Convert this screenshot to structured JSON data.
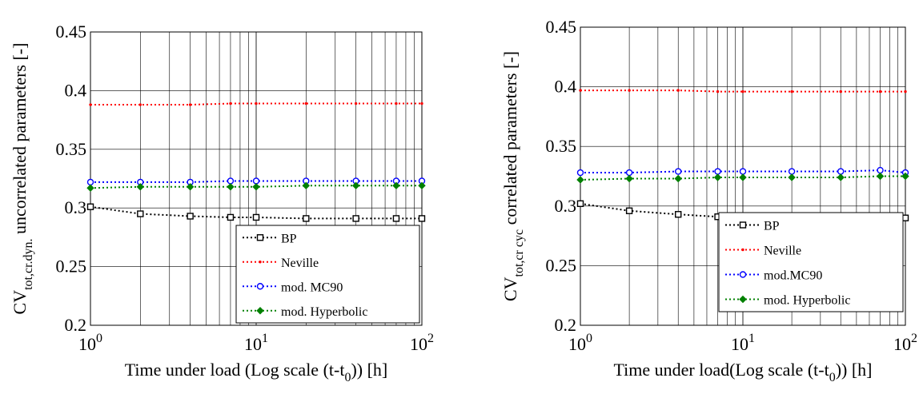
{
  "chart_data": [
    {
      "type": "line",
      "xscale": "log",
      "xlim": [
        1,
        100
      ],
      "ylim": [
        0.2,
        0.45
      ],
      "grid": true,
      "legend_position": "bottom-right",
      "xlabel": "Time under load (Log scale (t-t0)) [h]",
      "xlabel_parts": {
        "main": "Time under load (Log scale (t-t",
        "sub": "0",
        "tail": ")) [h]"
      },
      "ylabel": "CVtot,cr.dyn. uncorrelated parameters [-]",
      "ylabel_parts": {
        "cv": "CV",
        "sub": "tot,cr.dyn.",
        "rest": "uncorrelated parameters [-]"
      },
      "xticks": [
        {
          "base": "10",
          "exp": "0"
        },
        {
          "base": "10",
          "exp": "1"
        },
        {
          "base": "10",
          "exp": "2"
        }
      ],
      "yticks": [
        "0.2",
        "0.25",
        "0.3",
        "0.35",
        "0.4",
        "0.45"
      ],
      "x": [
        1,
        2,
        4,
        7,
        10,
        20,
        40,
        70,
        100
      ],
      "series": [
        {
          "name": "BP",
          "color": "#000000",
          "marker": "square",
          "values": [
            0.301,
            0.295,
            0.293,
            0.292,
            0.292,
            0.291,
            0.291,
            0.291,
            0.291
          ]
        },
        {
          "name": "Neville",
          "color": "#ff0000",
          "marker": "dot",
          "values": [
            0.388,
            0.388,
            0.388,
            0.389,
            0.389,
            0.389,
            0.389,
            0.389,
            0.389
          ]
        },
        {
          "name": "mod. MC90",
          "color": "#0000ff",
          "marker": "circle",
          "values": [
            0.322,
            0.322,
            0.322,
            0.323,
            0.323,
            0.323,
            0.323,
            0.323,
            0.323
          ]
        },
        {
          "name": "mod. Hyperbolic",
          "color": "#008000",
          "marker": "diamond",
          "values": [
            0.317,
            0.318,
            0.318,
            0.318,
            0.318,
            0.319,
            0.319,
            0.319,
            0.319
          ]
        }
      ]
    },
    {
      "type": "line",
      "xscale": "log",
      "xlim": [
        1,
        100
      ],
      "ylim": [
        0.2,
        0.45
      ],
      "grid": true,
      "legend_position": "bottom-right",
      "xlabel": "Time under load(Log scale (t-t0)) [h]",
      "xlabel_parts": {
        "main": "Time under load(Log scale (t-t",
        "sub": "0",
        "tail": ")) [h]"
      },
      "ylabel": "CVtot,cr cyc correlated parameters [-]",
      "ylabel_parts": {
        "cv": "CV",
        "sub": "tot,cr cyc",
        "rest": "correlated parameters [-]"
      },
      "xticks": [
        {
          "base": "10",
          "exp": "0"
        },
        {
          "base": "10",
          "exp": "1"
        },
        {
          "base": "10",
          "exp": "2"
        }
      ],
      "yticks": [
        "0.2",
        "0.25",
        "0.3",
        "0.35",
        "0.4",
        "0.45"
      ],
      "x": [
        1,
        2,
        4,
        7,
        10,
        20,
        40,
        70,
        100
      ],
      "series": [
        {
          "name": "BP",
          "color": "#000000",
          "marker": "square",
          "values": [
            0.302,
            0.296,
            0.293,
            0.291,
            0.291,
            0.291,
            0.291,
            0.29,
            0.29
          ]
        },
        {
          "name": "Neville",
          "color": "#ff0000",
          "marker": "dot",
          "values": [
            0.397,
            0.397,
            0.397,
            0.396,
            0.396,
            0.396,
            0.396,
            0.396,
            0.396
          ]
        },
        {
          "name": "mod.MC90",
          "color": "#0000ff",
          "marker": "circle",
          "values": [
            0.328,
            0.328,
            0.329,
            0.329,
            0.329,
            0.329,
            0.329,
            0.33,
            0.328
          ]
        },
        {
          "name": "mod. Hyperbolic",
          "color": "#008000",
          "marker": "diamond",
          "values": [
            0.322,
            0.323,
            0.323,
            0.324,
            0.324,
            0.324,
            0.324,
            0.325,
            0.325
          ]
        }
      ]
    }
  ]
}
